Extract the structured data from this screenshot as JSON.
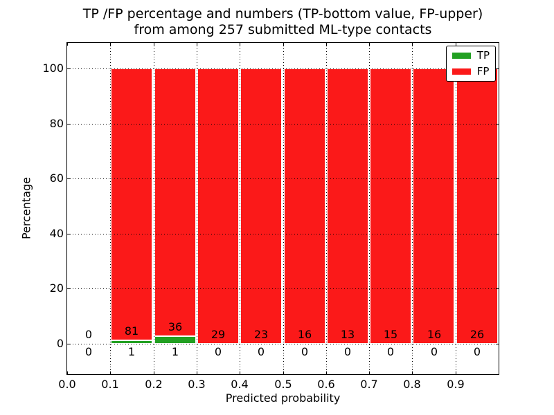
{
  "figure": {
    "title_line1": "TP /FP percentage and numbers (TP-bottom value, FP-upper)",
    "title_line2": "from among 257 submitted ML-type contacts",
    "xlabel": "Predicted probability",
    "ylabel": "Percentage"
  },
  "legend": {
    "position": "upper right",
    "items": [
      {
        "label": "TP",
        "color": "#22a022"
      },
      {
        "label": "FP",
        "color": "#fb1919"
      }
    ]
  },
  "colors": {
    "tp": "#22a022",
    "fp": "#fb1919",
    "axis": "#000000",
    "grid": "#000000",
    "background": "#ffffff",
    "text": "#000000"
  },
  "chart_data": {
    "type": "bar",
    "stacked": true,
    "units": "percent",
    "title": "TP /FP percentage and numbers (TP-bottom value, FP-upper) from among 257 submitted ML-type contacts",
    "xlabel": "Predicted probability",
    "ylabel": "Percentage",
    "total_contacts": 257,
    "grid": true,
    "legend_position": "upper right",
    "xlim": [
      0.0,
      1.0
    ],
    "ylim": [
      -11.06,
      109.3
    ],
    "x_tick_labels": [
      "0.0",
      "0.1",
      "0.2",
      "0.3",
      "0.4",
      "0.5",
      "0.6",
      "0.7",
      "0.8",
      "0.9"
    ],
    "y_ticks": [
      0,
      20,
      40,
      60,
      80,
      100
    ],
    "series": [
      {
        "name": "TP",
        "counts": [
          0,
          1,
          1,
          0,
          0,
          0,
          0,
          0,
          0,
          0
        ]
      },
      {
        "name": "FP",
        "counts": [
          0,
          81,
          36,
          29,
          23,
          16,
          13,
          15,
          16,
          26
        ]
      }
    ],
    "bins": [
      {
        "range": [
          0.0,
          0.1
        ],
        "tp": 0,
        "fp": 0,
        "tp_pct": 0,
        "fp_pct": 0
      },
      {
        "range": [
          0.1,
          0.2
        ],
        "tp": 1,
        "fp": 81,
        "tp_pct": 1.22,
        "fp_pct": 98.78
      },
      {
        "range": [
          0.2,
          0.3
        ],
        "tp": 1,
        "fp": 36,
        "tp_pct": 2.7,
        "fp_pct": 97.3
      },
      {
        "range": [
          0.3,
          0.4
        ],
        "tp": 0,
        "fp": 29,
        "tp_pct": 0,
        "fp_pct": 100
      },
      {
        "range": [
          0.4,
          0.5
        ],
        "tp": 0,
        "fp": 23,
        "tp_pct": 0,
        "fp_pct": 100
      },
      {
        "range": [
          0.5,
          0.6
        ],
        "tp": 0,
        "fp": 16,
        "tp_pct": 0,
        "fp_pct": 100
      },
      {
        "range": [
          0.6,
          0.7
        ],
        "tp": 0,
        "fp": 13,
        "tp_pct": 0,
        "fp_pct": 100
      },
      {
        "range": [
          0.7,
          0.8
        ],
        "tp": 0,
        "fp": 15,
        "tp_pct": 0,
        "fp_pct": 100
      },
      {
        "range": [
          0.8,
          0.9
        ],
        "tp": 0,
        "fp": 16,
        "tp_pct": 0,
        "fp_pct": 100
      },
      {
        "range": [
          0.9,
          1.0
        ],
        "tp": 0,
        "fp": 26,
        "tp_pct": 0,
        "fp_pct": 100
      }
    ]
  }
}
